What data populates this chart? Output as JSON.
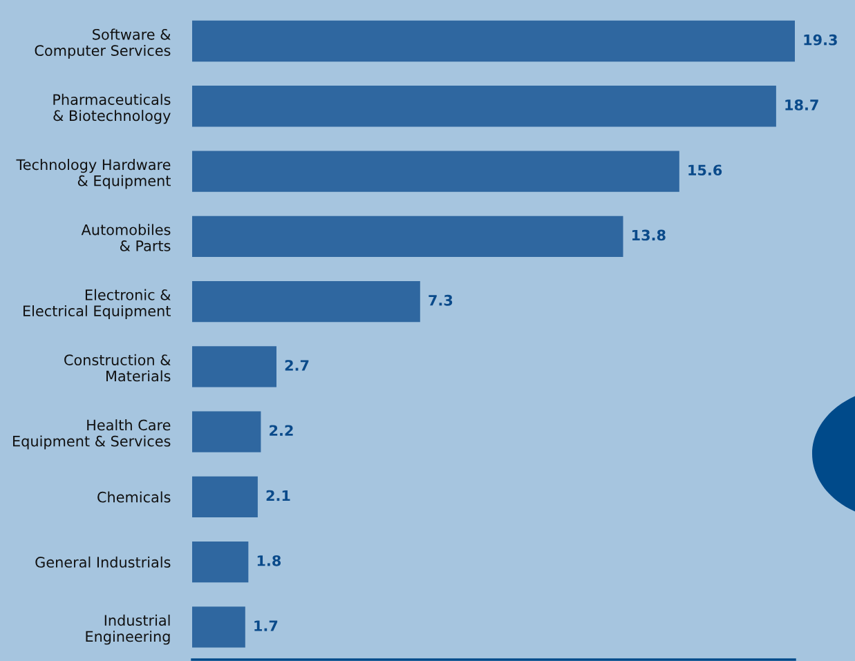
{
  "chart_data": {
    "type": "bar",
    "orientation": "horizontal",
    "categories": [
      "Software &\nComputer Services",
      "Pharmaceuticals\n& Biotechnology",
      "Technology Hardware\n& Equipment",
      "Automobiles\n& Parts",
      "Electronic &\nElectrical Equipment",
      "Construction &\nMaterials",
      "Health Care\nEquipment & Services",
      "Chemicals",
      "General Industrials",
      "Industrial\nEngineering"
    ],
    "values": [
      19.3,
      18.7,
      15.6,
      13.8,
      7.3,
      2.7,
      2.2,
      2.1,
      1.8,
      1.7
    ],
    "color": "#2f67a0",
    "xlim": [
      0,
      19.3
    ],
    "data_labels": true,
    "tick_labels": "y",
    "grid": false
  }
}
